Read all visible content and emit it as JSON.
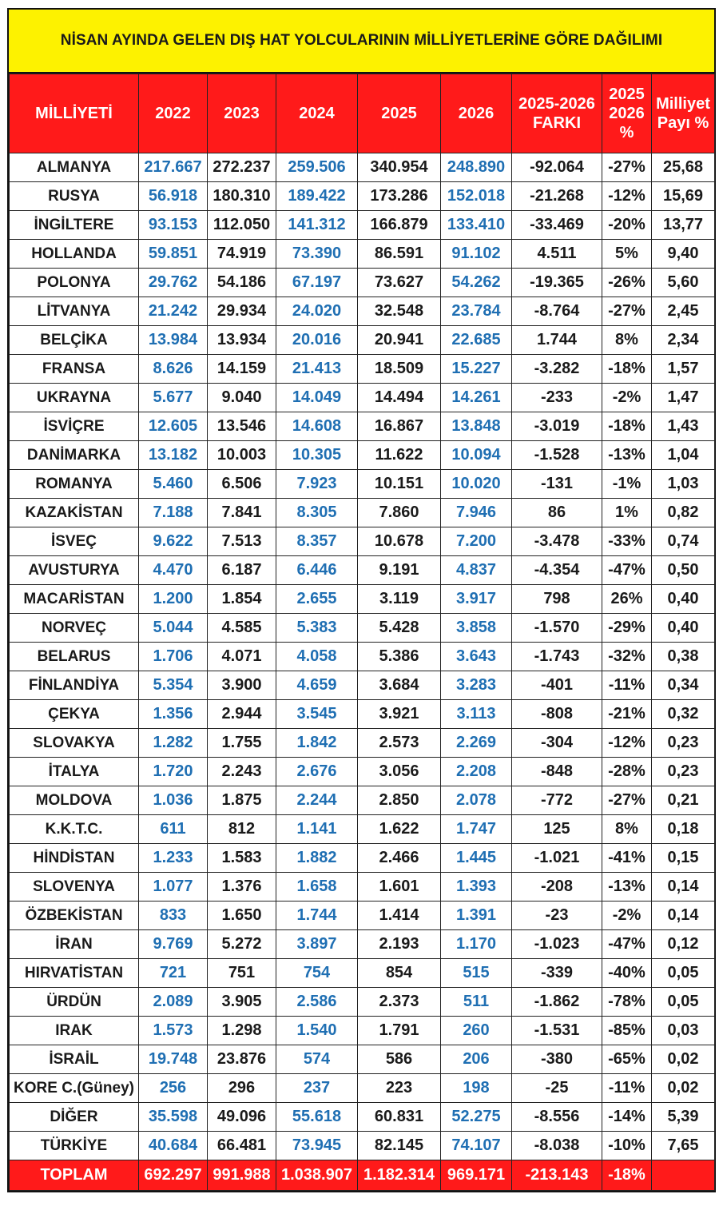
{
  "title": "NİSAN AYINDA GELEN DIŞ HAT YOLCULARININ MİLLİYETLERİNE GÖRE DAĞILIMI",
  "headers": {
    "nationality": "MİLLİYETİ",
    "y2022": "2022",
    "y2023": "2023",
    "y2024": "2024",
    "y2025": "2025",
    "y2026": "2026",
    "diff": [
      "2025-2026",
      "FARKI"
    ],
    "pct": [
      "2025",
      "2026",
      "%"
    ],
    "share": [
      "Milliyet",
      "Payı %"
    ]
  },
  "rows": [
    {
      "name": "ALMANYA",
      "y2022": "217.667",
      "y2023": "272.237",
      "y2024": "259.506",
      "y2025": "340.954",
      "y2026": "248.890",
      "diff": "-92.064",
      "pct": "-27%",
      "share": "25,68"
    },
    {
      "name": "RUSYA",
      "y2022": "56.918",
      "y2023": "180.310",
      "y2024": "189.422",
      "y2025": "173.286",
      "y2026": "152.018",
      "diff": "-21.268",
      "pct": "-12%",
      "share": "15,69"
    },
    {
      "name": "İNGİLTERE",
      "y2022": "93.153",
      "y2023": "112.050",
      "y2024": "141.312",
      "y2025": "166.879",
      "y2026": "133.410",
      "diff": "-33.469",
      "pct": "-20%",
      "share": "13,77"
    },
    {
      "name": "HOLLANDA",
      "y2022": "59.851",
      "y2023": "74.919",
      "y2024": "73.390",
      "y2025": "86.591",
      "y2026": "91.102",
      "diff": "4.511",
      "pct": "5%",
      "share": "9,40"
    },
    {
      "name": "POLONYA",
      "y2022": "29.762",
      "y2023": "54.186",
      "y2024": "67.197",
      "y2025": "73.627",
      "y2026": "54.262",
      "diff": "-19.365",
      "pct": "-26%",
      "share": "5,60"
    },
    {
      "name": "LİTVANYA",
      "y2022": "21.242",
      "y2023": "29.934",
      "y2024": "24.020",
      "y2025": "32.548",
      "y2026": "23.784",
      "diff": "-8.764",
      "pct": "-27%",
      "share": "2,45"
    },
    {
      "name": "BELÇİKA",
      "y2022": "13.984",
      "y2023": "13.934",
      "y2024": "20.016",
      "y2025": "20.941",
      "y2026": "22.685",
      "diff": "1.744",
      "pct": "8%",
      "share": "2,34"
    },
    {
      "name": "FRANSA",
      "y2022": "8.626",
      "y2023": "14.159",
      "y2024": "21.413",
      "y2025": "18.509",
      "y2026": "15.227",
      "diff": "-3.282",
      "pct": "-18%",
      "share": "1,57"
    },
    {
      "name": "UKRAYNA",
      "y2022": "5.677",
      "y2023": "9.040",
      "y2024": "14.049",
      "y2025": "14.494",
      "y2026": "14.261",
      "diff": "-233",
      "pct": "-2%",
      "share": "1,47"
    },
    {
      "name": "İSVİÇRE",
      "y2022": "12.605",
      "y2023": "13.546",
      "y2024": "14.608",
      "y2025": "16.867",
      "y2026": "13.848",
      "diff": "-3.019",
      "pct": "-18%",
      "share": "1,43"
    },
    {
      "name": "DANİMARKA",
      "y2022": "13.182",
      "y2023": "10.003",
      "y2024": "10.305",
      "y2025": "11.622",
      "y2026": "10.094",
      "diff": "-1.528",
      "pct": "-13%",
      "share": "1,04"
    },
    {
      "name": "ROMANYA",
      "y2022": "5.460",
      "y2023": "6.506",
      "y2024": "7.923",
      "y2025": "10.151",
      "y2026": "10.020",
      "diff": "-131",
      "pct": "-1%",
      "share": "1,03"
    },
    {
      "name": "KAZAKİSTAN",
      "y2022": "7.188",
      "y2023": "7.841",
      "y2024": "8.305",
      "y2025": "7.860",
      "y2026": "7.946",
      "diff": "86",
      "pct": "1%",
      "share": "0,82"
    },
    {
      "name": "İSVEÇ",
      "y2022": "9.622",
      "y2023": "7.513",
      "y2024": "8.357",
      "y2025": "10.678",
      "y2026": "7.200",
      "diff": "-3.478",
      "pct": "-33%",
      "share": "0,74"
    },
    {
      "name": "AVUSTURYA",
      "y2022": "4.470",
      "y2023": "6.187",
      "y2024": "6.446",
      "y2025": "9.191",
      "y2026": "4.837",
      "diff": "-4.354",
      "pct": "-47%",
      "share": "0,50"
    },
    {
      "name": "MACARİSTAN",
      "y2022": "1.200",
      "y2023": "1.854",
      "y2024": "2.655",
      "y2025": "3.119",
      "y2026": "3.917",
      "diff": "798",
      "pct": "26%",
      "share": "0,40"
    },
    {
      "name": "NORVEÇ",
      "y2022": "5.044",
      "y2023": "4.585",
      "y2024": "5.383",
      "y2025": "5.428",
      "y2026": "3.858",
      "diff": "-1.570",
      "pct": "-29%",
      "share": "0,40"
    },
    {
      "name": "BELARUS",
      "y2022": "1.706",
      "y2023": "4.071",
      "y2024": "4.058",
      "y2025": "5.386",
      "y2026": "3.643",
      "diff": "-1.743",
      "pct": "-32%",
      "share": "0,38"
    },
    {
      "name": "FİNLANDİYA",
      "y2022": "5.354",
      "y2023": "3.900",
      "y2024": "4.659",
      "y2025": "3.684",
      "y2026": "3.283",
      "diff": "-401",
      "pct": "-11%",
      "share": "0,34"
    },
    {
      "name": "ÇEKYA",
      "y2022": "1.356",
      "y2023": "2.944",
      "y2024": "3.545",
      "y2025": "3.921",
      "y2026": "3.113",
      "diff": "-808",
      "pct": "-21%",
      "share": "0,32"
    },
    {
      "name": "SLOVAKYA",
      "y2022": "1.282",
      "y2023": "1.755",
      "y2024": "1.842",
      "y2025": "2.573",
      "y2026": "2.269",
      "diff": "-304",
      "pct": "-12%",
      "share": "0,23"
    },
    {
      "name": "İTALYA",
      "y2022": "1.720",
      "y2023": "2.243",
      "y2024": "2.676",
      "y2025": "3.056",
      "y2026": "2.208",
      "diff": "-848",
      "pct": "-28%",
      "share": "0,23"
    },
    {
      "name": "MOLDOVA",
      "y2022": "1.036",
      "y2023": "1.875",
      "y2024": "2.244",
      "y2025": "2.850",
      "y2026": "2.078",
      "diff": "-772",
      "pct": "-27%",
      "share": "0,21"
    },
    {
      "name": "K.K.T.C.",
      "y2022": "611",
      "y2023": "812",
      "y2024": "1.141",
      "y2025": "1.622",
      "y2026": "1.747",
      "diff": "125",
      "pct": "8%",
      "share": "0,18"
    },
    {
      "name": "HİNDİSTAN",
      "y2022": "1.233",
      "y2023": "1.583",
      "y2024": "1.882",
      "y2025": "2.466",
      "y2026": "1.445",
      "diff": "-1.021",
      "pct": "-41%",
      "share": "0,15"
    },
    {
      "name": "SLOVENYA",
      "y2022": "1.077",
      "y2023": "1.376",
      "y2024": "1.658",
      "y2025": "1.601",
      "y2026": "1.393",
      "diff": "-208",
      "pct": "-13%",
      "share": "0,14"
    },
    {
      "name": "ÖZBEKİSTAN",
      "y2022": "833",
      "y2023": "1.650",
      "y2024": "1.744",
      "y2025": "1.414",
      "y2026": "1.391",
      "diff": "-23",
      "pct": "-2%",
      "share": "0,14"
    },
    {
      "name": "İRAN",
      "y2022": "9.769",
      "y2023": "5.272",
      "y2024": "3.897",
      "y2025": "2.193",
      "y2026": "1.170",
      "diff": "-1.023",
      "pct": "-47%",
      "share": "0,12"
    },
    {
      "name": "HIRVATİSTAN",
      "y2022": "721",
      "y2023": "751",
      "y2024": "754",
      "y2025": "854",
      "y2026": "515",
      "diff": "-339",
      "pct": "-40%",
      "share": "0,05"
    },
    {
      "name": "ÜRDÜN",
      "y2022": "2.089",
      "y2023": "3.905",
      "y2024": "2.586",
      "y2025": "2.373",
      "y2026": "511",
      "diff": "-1.862",
      "pct": "-78%",
      "share": "0,05"
    },
    {
      "name": "IRAK",
      "y2022": "1.573",
      "y2023": "1.298",
      "y2024": "1.540",
      "y2025": "1.791",
      "y2026": "260",
      "diff": "-1.531",
      "pct": "-85%",
      "share": "0,03"
    },
    {
      "name": "İSRAİL",
      "y2022": "19.748",
      "y2023": "23.876",
      "y2024": "574",
      "y2025": "586",
      "y2026": "206",
      "diff": "-380",
      "pct": "-65%",
      "share": "0,02"
    },
    {
      "name": "KORE C.(Güney)",
      "y2022": "256",
      "y2023": "296",
      "y2024": "237",
      "y2025": "223",
      "y2026": "198",
      "diff": "-25",
      "pct": "-11%",
      "share": "0,02"
    },
    {
      "name": "DİĞER",
      "y2022": "35.598",
      "y2023": "49.096",
      "y2024": "55.618",
      "y2025": "60.831",
      "y2026": "52.275",
      "diff": "-8.556",
      "pct": "-14%",
      "share": "5,39"
    },
    {
      "name": "TÜRKİYE",
      "y2022": "40.684",
      "y2023": "66.481",
      "y2024": "73.945",
      "y2025": "82.145",
      "y2026": "74.107",
      "diff": "-8.038",
      "pct": "-10%",
      "share": "7,65"
    }
  ],
  "total": {
    "name": "TOPLAM",
    "y2022": "692.297",
    "y2023": "991.988",
    "y2024": "1.038.907",
    "y2025": "1.182.314",
    "y2026": "969.171",
    "diff": "-213.143",
    "pct": "-18%",
    "share": ""
  },
  "colors": {
    "header_red": "#ff1a1a",
    "title_yellow": "#fdf200",
    "value_blue": "#1f6fb3",
    "value_black": "#1a1a1a"
  }
}
